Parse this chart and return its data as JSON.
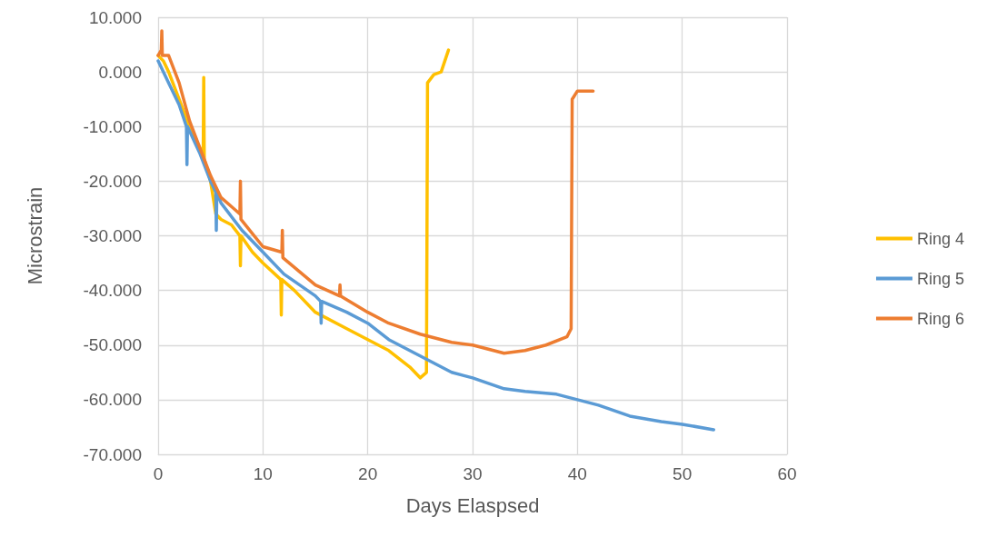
{
  "chart_data": {
    "type": "line",
    "xlabel": "Days Elaspsed",
    "ylabel": "Microstrain",
    "xlim": [
      0,
      60
    ],
    "xticks": [
      0,
      10,
      20,
      30,
      40,
      50,
      60
    ],
    "ylim": [
      -70,
      10
    ],
    "yticks": [
      {
        "value": -70,
        "label": "-70.000"
      },
      {
        "value": -60,
        "label": "-60.000"
      },
      {
        "value": -50,
        "label": "-50.000"
      },
      {
        "value": -40,
        "label": "-40.000"
      },
      {
        "value": -30,
        "label": "-30.000"
      },
      {
        "value": -20,
        "label": "-20.000"
      },
      {
        "value": -10,
        "label": "-10.000"
      },
      {
        "value": 0,
        "label": "0.000"
      },
      {
        "value": 10,
        "label": "10.000"
      }
    ],
    "grid": true,
    "legend": "right",
    "marker": "none",
    "line_style": "solid",
    "series": [
      {
        "name": "Ring 4",
        "color": "#ffc000",
        "x": [
          0,
          0.5,
          1,
          2,
          3,
          4,
          4.3,
          4.35,
          4.4,
          5,
          5.5,
          6,
          7,
          7.8,
          7.85,
          7.9,
          9,
          10,
          11.7,
          11.75,
          11.8,
          13,
          15,
          18,
          20,
          22,
          24,
          25,
          25.6,
          25.7,
          26.3,
          27,
          27.7
        ],
        "values": [
          3,
          2,
          0,
          -5,
          -10,
          -14,
          -15,
          -1,
          -16,
          -20,
          -26,
          -27,
          -28,
          -30,
          -35.5,
          -30,
          -33,
          -35,
          -38,
          -44.5,
          -38,
          -40,
          -44,
          -47,
          -49,
          -51,
          -54,
          -56,
          -55,
          -2,
          -0.5,
          0,
          4
        ]
      },
      {
        "name": "Ring 5",
        "color": "#5b9bd5",
        "x": [
          0,
          1,
          2,
          2.7,
          2.75,
          2.8,
          4,
          5,
          5.5,
          5.55,
          5.6,
          6,
          8,
          10,
          12,
          15,
          15.5,
          15.55,
          15.6,
          18,
          20,
          22,
          25,
          28,
          30,
          33,
          35,
          38,
          40,
          42,
          45,
          48,
          50,
          53
        ],
        "values": [
          2,
          -2,
          -6,
          -10,
          -17,
          -10,
          -15,
          -20,
          -22,
          -29,
          -22,
          -24,
          -29,
          -33,
          -37,
          -41,
          -42,
          -46,
          -42,
          -44,
          -46,
          -49,
          -52,
          -55,
          -56,
          -58,
          -58.5,
          -59,
          -60,
          -61,
          -63,
          -64,
          -64.5,
          -65.5
        ]
      },
      {
        "name": "Ring 6",
        "color": "#ed7d31",
        "x": [
          0,
          0.3,
          0.35,
          0.4,
          1,
          2,
          3,
          4,
          5,
          6,
          7.8,
          7.85,
          7.9,
          10,
          11.8,
          11.85,
          11.9,
          15,
          17.3,
          17.35,
          17.4,
          20,
          22,
          25,
          28,
          30,
          33,
          35,
          37,
          39,
          39.4,
          39.5,
          40,
          41.5
        ],
        "values": [
          3,
          4,
          7.5,
          3,
          3,
          -2,
          -9,
          -14,
          -19,
          -23,
          -26,
          -20,
          -27,
          -32,
          -33,
          -29,
          -34,
          -39,
          -41,
          -39,
          -41,
          -44,
          -46,
          -48,
          -49.5,
          -50,
          -51.5,
          -51,
          -50,
          -48.5,
          -47,
          -5,
          -3.5,
          -3.5
        ]
      }
    ]
  }
}
